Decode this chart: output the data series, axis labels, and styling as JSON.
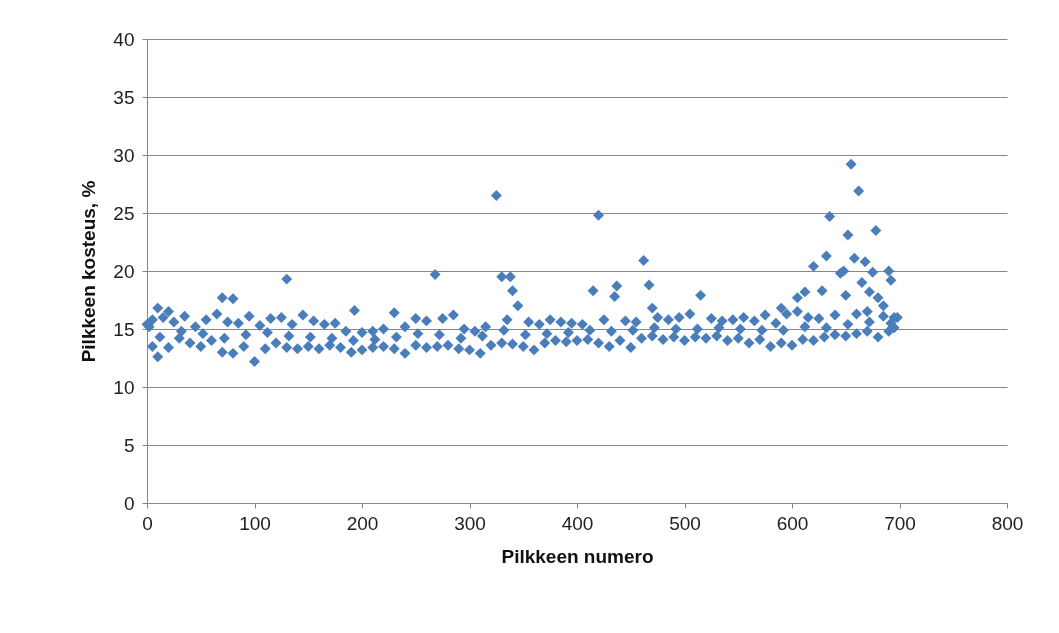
{
  "chart_data": {
    "type": "scatter",
    "xlabel": "Pilkkeen numero",
    "ylabel": "Pilkkeen kosteus, %",
    "xlim": [
      0,
      800
    ],
    "xticks": [
      0,
      100,
      200,
      300,
      400,
      500,
      600,
      700,
      800
    ],
    "ylim": [
      0,
      40
    ],
    "yticks": [
      0,
      5,
      10,
      15,
      20,
      25,
      30,
      35,
      40
    ],
    "grid": "y",
    "marker": "diamond",
    "series": [
      {
        "color": "#4a7ebb",
        "x": [
          10,
          20,
          70,
          80,
          130,
          145,
          193,
          230,
          268,
          285,
          325,
          330,
          338,
          340,
          345,
          415,
          420,
          435,
          437,
          462,
          467,
          470,
          515,
          590,
          605,
          612,
          620,
          628,
          632,
          635,
          645,
          648,
          652,
          655,
          650,
          658,
          662,
          665,
          668,
          672,
          675,
          678,
          680,
          690,
          692,
          685,
          695,
          5,
          10,
          20,
          30,
          40,
          50,
          60,
          70,
          80,
          90,
          100,
          110,
          120,
          130,
          140,
          150,
          160,
          170,
          180,
          190,
          200,
          210,
          220,
          230,
          240,
          250,
          260,
          270,
          280,
          290,
          300,
          310,
          320,
          330,
          340,
          350,
          360,
          370,
          380,
          390,
          400,
          410,
          420,
          430,
          440,
          450,
          460,
          470,
          480,
          490,
          500,
          510,
          520,
          530,
          540,
          550,
          560,
          570,
          580,
          590,
          600,
          610,
          620,
          630,
          640,
          650,
          660,
          670,
          680,
          690,
          695,
          0,
          5,
          15,
          25,
          35,
          45,
          55,
          65,
          75,
          85,
          95,
          105,
          115,
          125,
          135,
          155,
          165,
          175,
          185,
          200,
          210,
          220,
          240,
          250,
          260,
          275,
          295,
          305,
          315,
          335,
          355,
          365,
          375,
          385,
          395,
          405,
          425,
          445,
          455,
          475,
          485,
          495,
          505,
          525,
          535,
          545,
          555,
          565,
          575,
          585,
          595,
          605,
          615,
          625,
          640,
          660,
          670,
          685,
          698,
          2,
          12,
          32,
          52,
          72,
          92,
          112,
          132,
          152,
          172,
          192,
          212,
          232,
          252,
          272,
          292,
          312,
          332,
          352,
          372,
          392,
          412,
          432,
          452,
          472,
          492,
          512,
          532,
          552,
          572,
          592,
          612,
          632,
          652,
          672,
          692
        ],
        "values": [
          16.8,
          16.5,
          17.7,
          17.6,
          19.3,
          16.2,
          16.6,
          16.4,
          19.7,
          16.2,
          26.5,
          19.5,
          19.5,
          18.3,
          17.0,
          18.3,
          24.8,
          17.8,
          18.7,
          20.9,
          18.8,
          16.8,
          17.9,
          16.8,
          17.7,
          18.2,
          20.4,
          18.3,
          21.3,
          24.7,
          19.8,
          20.0,
          23.1,
          29.2,
          17.9,
          21.1,
          26.9,
          19.0,
          20.8,
          18.2,
          19.9,
          23.5,
          17.7,
          20.0,
          19.2,
          17.0,
          16.0,
          13.5,
          12.6,
          13.4,
          14.2,
          13.8,
          13.5,
          14.0,
          13.0,
          12.9,
          13.5,
          12.2,
          13.3,
          13.8,
          13.4,
          13.3,
          13.5,
          13.3,
          13.6,
          13.4,
          13.0,
          13.2,
          13.4,
          13.5,
          13.3,
          12.9,
          13.6,
          13.4,
          13.5,
          13.6,
          13.3,
          13.2,
          12.9,
          13.6,
          13.8,
          13.7,
          13.5,
          13.2,
          13.8,
          14.0,
          13.9,
          14.0,
          14.1,
          13.8,
          13.5,
          14.0,
          13.4,
          14.2,
          14.4,
          14.1,
          14.3,
          14.0,
          14.3,
          14.2,
          14.4,
          14.0,
          14.2,
          13.8,
          14.1,
          13.5,
          13.8,
          13.6,
          14.1,
          14.0,
          14.3,
          14.5,
          14.4,
          14.6,
          14.8,
          14.3,
          14.8,
          15.1,
          15.4,
          15.8,
          16.0,
          15.6,
          16.1,
          15.2,
          15.8,
          16.3,
          15.6,
          15.5,
          16.1,
          15.3,
          15.9,
          16.0,
          15.4,
          15.7,
          15.4,
          15.5,
          14.8,
          14.7,
          14.8,
          15.0,
          15.2,
          15.9,
          15.7,
          15.9,
          15.0,
          14.8,
          15.2,
          15.8,
          15.6,
          15.4,
          15.8,
          15.6,
          15.5,
          15.4,
          15.8,
          15.7,
          15.6,
          16.0,
          15.8,
          16.0,
          16.3,
          15.9,
          15.7,
          15.8,
          16.0,
          15.7,
          16.2,
          15.5,
          16.3,
          16.5,
          16.0,
          15.9,
          16.2,
          16.3,
          16.5,
          16.1,
          16.0,
          15.2,
          14.3,
          14.8,
          14.6,
          14.2,
          14.5,
          14.7,
          14.4,
          14.3,
          14.2,
          14.0,
          14.1,
          14.3,
          14.6,
          14.5,
          14.2,
          14.4,
          14.9,
          14.5,
          14.6,
          14.7,
          14.9,
          14.8,
          14.9,
          15.1,
          15.0,
          15.0,
          15.1,
          15.0,
          14.9,
          14.9,
          15.2,
          15.1,
          15.4,
          15.6,
          15.5
        ]
      }
    ]
  }
}
